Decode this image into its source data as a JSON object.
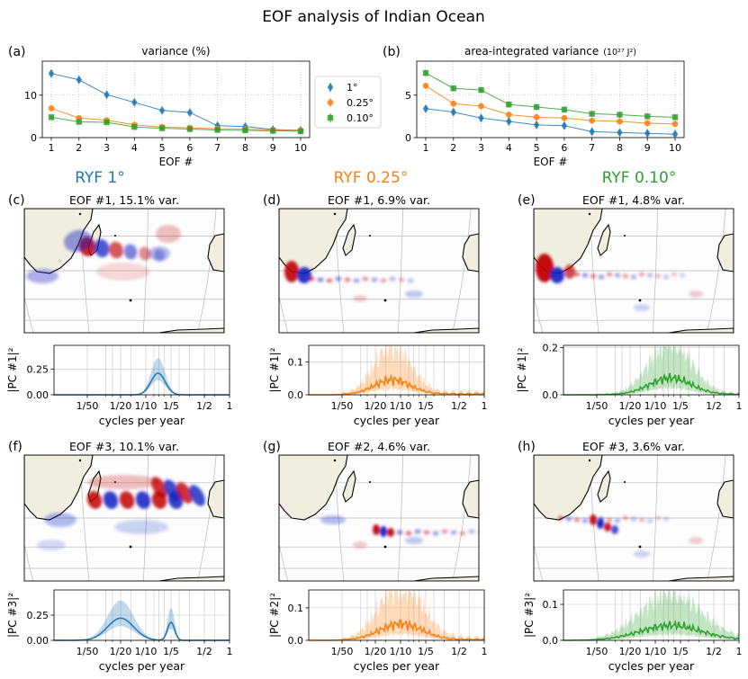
{
  "figure_title": "EOF analysis of Indian Ocean",
  "colors": {
    "ryf1": "#1f77b4",
    "ryf025": "#ff7f0e",
    "ryf010": "#2ca02c",
    "land": "#efeedf",
    "pos": "#c00000",
    "neg": "#1020c0"
  },
  "column_titles": [
    "RYF 1°",
    "RYF 0.25°",
    "RYF 0.10°"
  ],
  "chart_data": [
    {
      "type": "line",
      "panel": "(a)",
      "title": "variance (%)",
      "xlabel": "EOF #",
      "ylabel": "",
      "x": [
        1,
        2,
        3,
        4,
        5,
        6,
        7,
        8,
        9,
        10
      ],
      "xticks": [
        "1",
        "2",
        "3",
        "4",
        "5",
        "6",
        "7",
        "8",
        "9",
        "10"
      ],
      "ylim": [
        0,
        18
      ],
      "yticks": [
        0,
        10
      ],
      "series": [
        {
          "name": "1°",
          "marker": "diamond",
          "color": "#1f77b4",
          "values": [
            15.1,
            13.6,
            10.1,
            8.3,
            6.4,
            5.9,
            2.8,
            2.6,
            1.9,
            1.7
          ]
        },
        {
          "name": "0.25°",
          "marker": "circle",
          "color": "#ff7f0e",
          "values": [
            6.9,
            4.6,
            4.1,
            3.0,
            2.5,
            2.3,
            2.1,
            2.0,
            1.8,
            1.7
          ]
        },
        {
          "name": "0.10°",
          "marker": "square",
          "color": "#2ca02c",
          "values": [
            4.8,
            3.7,
            3.6,
            2.5,
            2.2,
            2.0,
            1.8,
            1.7,
            1.6,
            1.5
          ]
        }
      ]
    },
    {
      "type": "line",
      "panel": "(b)",
      "title": "area-integrated variance",
      "title_unit": "(10²⁷ J²)",
      "xlabel": "EOF #",
      "ylabel": "",
      "x": [
        1,
        2,
        3,
        4,
        5,
        6,
        7,
        8,
        9,
        10
      ],
      "xticks": [
        "1",
        "2",
        "3",
        "4",
        "5",
        "6",
        "7",
        "8",
        "9",
        "10"
      ],
      "ylim": [
        0,
        9
      ],
      "yticks": [
        0,
        5
      ],
      "series": [
        {
          "name": "1°",
          "marker": "diamond",
          "color": "#1f77b4",
          "values": [
            3.4,
            3.0,
            2.3,
            1.9,
            1.5,
            1.4,
            0.7,
            0.6,
            0.5,
            0.4
          ]
        },
        {
          "name": "0.25°",
          "marker": "circle",
          "color": "#ff7f0e",
          "values": [
            6.1,
            4.0,
            3.7,
            2.7,
            2.4,
            2.3,
            2.0,
            1.9,
            1.7,
            1.6
          ]
        },
        {
          "name": "0.10°",
          "marker": "square",
          "color": "#2ca02c",
          "values": [
            7.6,
            5.8,
            5.6,
            3.9,
            3.6,
            3.3,
            2.8,
            2.7,
            2.5,
            2.4
          ]
        }
      ]
    },
    {
      "type": "area",
      "panel": "(c)",
      "map_title": "EOF #1, 15.1% var.",
      "pc_label": "|PC #1|²",
      "color": "#1f77b4",
      "xlabel": "cycles per year",
      "ylim": [
        0,
        0.48
      ],
      "yticks": [
        "0.00",
        "0.25"
      ],
      "xticks": [
        "1/50",
        "1/20",
        "1/10",
        "1/5",
        "1/2",
        "1"
      ],
      "peaks": [
        {
          "f": 0.14,
          "h": 0.21,
          "w": 0.12
        }
      ],
      "band": 0.7,
      "jag": 0.0
    },
    {
      "type": "area",
      "panel": "(d)",
      "map_title": "EOF #1, 6.9% var.",
      "pc_label": "|PC #1|²",
      "color": "#ff7f0e",
      "xlabel": "cycles per year",
      "ylim": [
        0,
        0.15
      ],
      "yticks": [
        "0.0",
        "0.1"
      ],
      "xticks": [
        "1/50",
        "1/20",
        "1/10",
        "1/5",
        "1/2",
        "1"
      ],
      "peaks": [
        {
          "f": 0.08,
          "h": 0.045,
          "w": 0.3
        }
      ],
      "band": 1.7,
      "jag": 0.4
    },
    {
      "type": "area",
      "panel": "(e)",
      "map_title": "EOF #1, 4.8% var.",
      "pc_label": "|PC #1|²",
      "color": "#2ca02c",
      "xlabel": "cycles per year",
      "ylim": [
        0,
        0.21
      ],
      "yticks": [
        "0.0",
        "0.2"
      ],
      "xticks": [
        "1/50",
        "1/20",
        "1/10",
        "1/5",
        "1/2",
        "1"
      ],
      "peaks": [
        {
          "f": 0.15,
          "h": 0.07,
          "w": 0.35
        }
      ],
      "band": 1.6,
      "jag": 0.35
    },
    {
      "type": "area",
      "panel": "(f)",
      "map_title": "EOF #3, 10.1% var.",
      "pc_label": "|PC #3|²",
      "color": "#1f77b4",
      "xlabel": "cycles per year",
      "ylim": [
        0,
        0.5
      ],
      "yticks": [
        "0.00",
        "0.25"
      ],
      "xticks": [
        "1/50",
        "1/20",
        "1/10",
        "1/5",
        "1/2",
        "1"
      ],
      "peaks": [
        {
          "f": 0.05,
          "h": 0.22,
          "w": 0.22
        },
        {
          "f": 0.2,
          "h": 0.18,
          "w": 0.06
        }
      ],
      "band": 0.8,
      "jag": 0.0
    },
    {
      "type": "area",
      "panel": "(g)",
      "map_title": "EOF #2, 4.6% var.",
      "pc_label": "|PC #2|²",
      "color": "#ff7f0e",
      "xlabel": "cycles per year",
      "ylim": [
        0,
        0.155
      ],
      "yticks": [
        "0.0",
        "0.1"
      ],
      "xticks": [
        "1/50",
        "1/20",
        "1/10",
        "1/5",
        "1/2",
        "1"
      ],
      "peaks": [
        {
          "f": 0.1,
          "h": 0.05,
          "w": 0.35
        }
      ],
      "band": 1.8,
      "jag": 0.4
    },
    {
      "type": "area",
      "panel": "(h)",
      "map_title": "EOF #3, 3.6% var.",
      "pc_label": "|PC #3|²",
      "color": "#2ca02c",
      "xlabel": "cycles per year",
      "ylim": [
        0,
        0.14
      ],
      "yticks": [
        "0.0",
        "0.1"
      ],
      "xticks": [
        "1/50",
        "1/20",
        "1/10",
        "1/5",
        "1/2",
        "1"
      ],
      "peaks": [
        {
          "f": 0.15,
          "h": 0.04,
          "w": 0.5
        }
      ],
      "band": 1.6,
      "jag": 0.35
    }
  ]
}
